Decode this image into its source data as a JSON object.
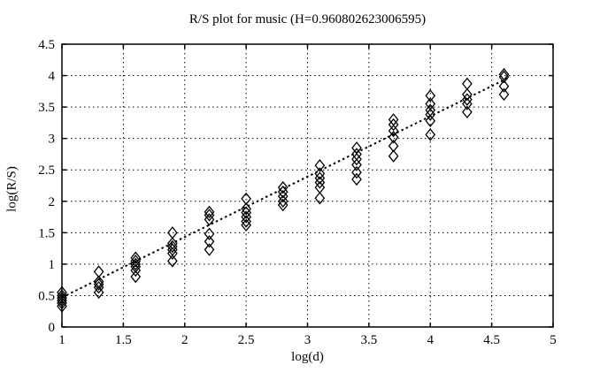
{
  "figure": {
    "background": "#ffffff",
    "ink": "#000000"
  },
  "chart_data": {
    "type": "scatter",
    "title": "R/S plot for music (H=0.960802623006595)",
    "xlabel": "log(d)",
    "ylabel": "log(R/S)",
    "hurst_exponent": 0.960802623006595,
    "xlim": [
      1,
      5
    ],
    "ylim": [
      0,
      4.5
    ],
    "xticks": [
      1,
      1.5,
      2,
      2.5,
      3,
      3.5,
      4,
      4.5,
      5
    ],
    "yticks": [
      0,
      0.5,
      1,
      1.5,
      2,
      2.5,
      3,
      3.5,
      4,
      4.5
    ],
    "grid": "dotted-both-axes",
    "legend": "none",
    "marker": "open-diamond",
    "clusters": [
      {
        "x": 1.0,
        "y": [
          0.55,
          0.5,
          0.46,
          0.42,
          0.38,
          0.33
        ]
      },
      {
        "x": 1.3,
        "y": [
          0.88,
          0.72,
          0.68,
          0.63,
          0.55
        ]
      },
      {
        "x": 1.6,
        "y": [
          1.1,
          1.05,
          1.0,
          0.96,
          0.9,
          0.8
        ]
      },
      {
        "x": 1.9,
        "y": [
          1.5,
          1.33,
          1.28,
          1.23,
          1.17,
          1.05
        ]
      },
      {
        "x": 2.2,
        "y": [
          1.83,
          1.78,
          1.71,
          1.48,
          1.36,
          1.23
        ]
      },
      {
        "x": 2.5,
        "y": [
          2.04,
          1.88,
          1.82,
          1.75,
          1.68,
          1.62
        ]
      },
      {
        "x": 2.8,
        "y": [
          2.22,
          2.15,
          2.08,
          2.0,
          1.94
        ]
      },
      {
        "x": 3.1,
        "y": [
          2.57,
          2.44,
          2.37,
          2.3,
          2.22,
          2.05
        ]
      },
      {
        "x": 3.4,
        "y": [
          2.85,
          2.75,
          2.67,
          2.58,
          2.46,
          2.35
        ]
      },
      {
        "x": 3.7,
        "y": [
          3.3,
          3.22,
          3.12,
          3.02,
          2.88,
          2.72
        ]
      },
      {
        "x": 4.0,
        "y": [
          3.68,
          3.55,
          3.45,
          3.38,
          3.28,
          3.06
        ]
      },
      {
        "x": 4.3,
        "y": [
          3.87,
          3.7,
          3.62,
          3.55,
          3.42
        ]
      },
      {
        "x": 4.6,
        "y": [
          4.02,
          3.98,
          3.83,
          3.7
        ]
      }
    ],
    "fit_line": {
      "slope": 0.960802623006595,
      "intercept": -0.49,
      "x_start": 1.0,
      "x_end": 4.65,
      "style": "dotted"
    }
  }
}
